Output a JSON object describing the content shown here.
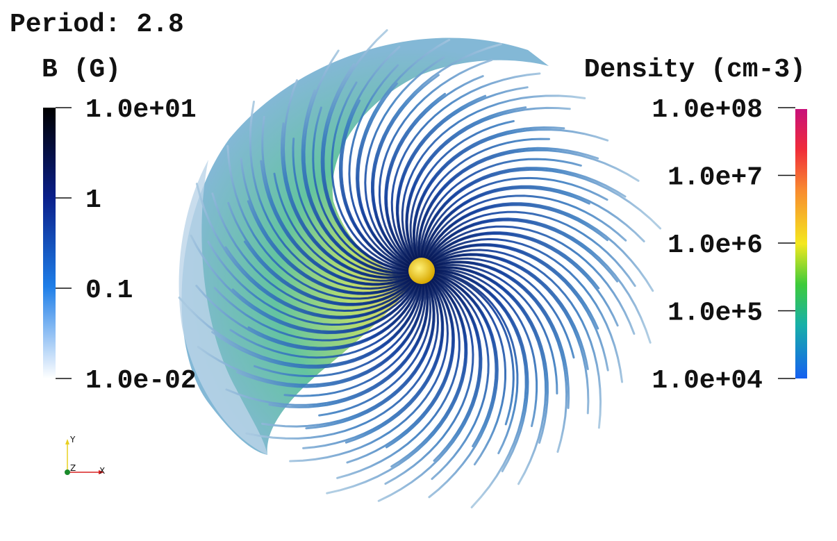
{
  "title": "Period: 2.8",
  "colorbar_left": {
    "title": "B (G)",
    "ticks": [
      "1.0e+01",
      "1",
      "0.1",
      "1.0e-02"
    ]
  },
  "colorbar_right": {
    "title": "Density (cm-3)",
    "ticks": [
      "1.0e+08",
      "1.0e+7",
      "1.0e+6",
      "1.0e+5",
      "1.0e+04"
    ]
  },
  "axes": {
    "labels": [
      "Y",
      "Z",
      "X"
    ]
  }
}
